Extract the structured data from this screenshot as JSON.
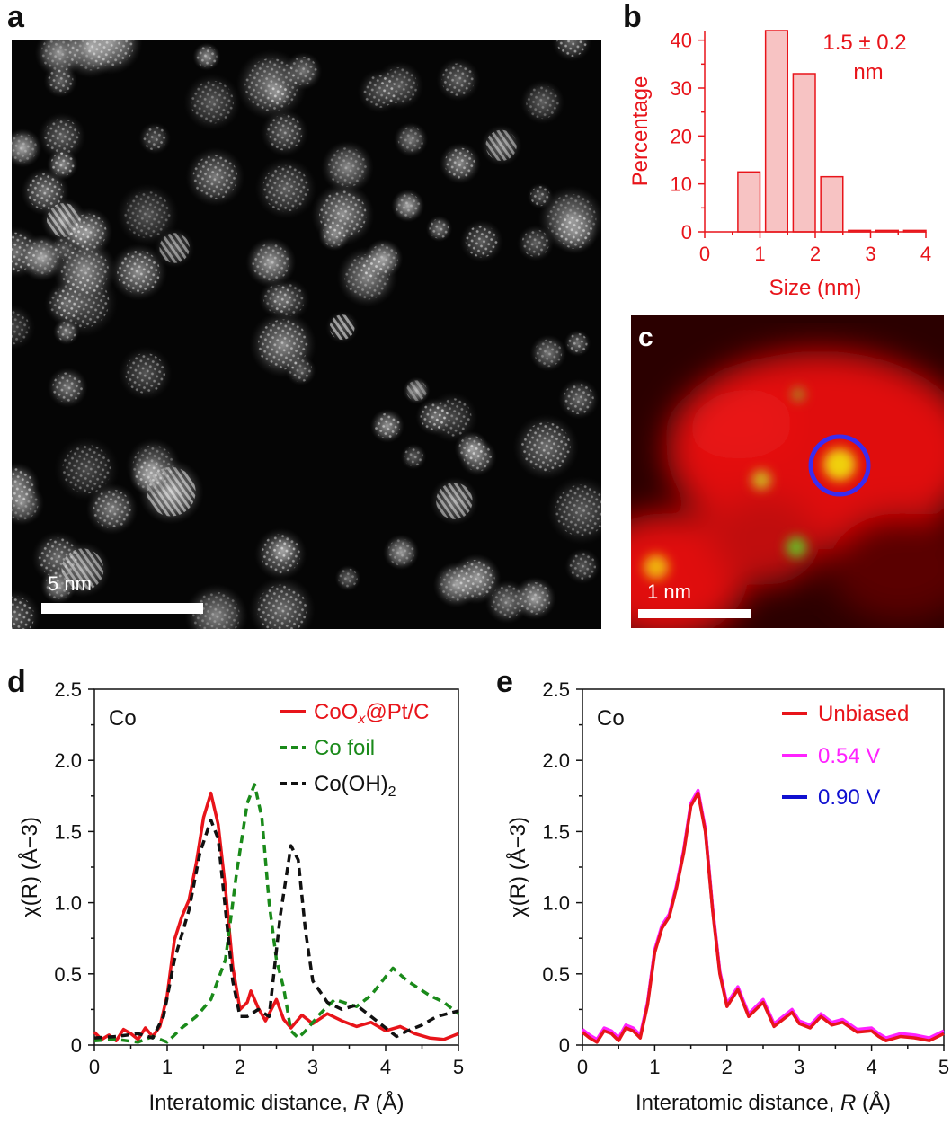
{
  "panels": {
    "a": {
      "letter": "a",
      "scale_label": "5 nm"
    },
    "b": {
      "letter": "b"
    },
    "c": {
      "letter": "c",
      "scale_label": "1 nm"
    },
    "d": {
      "letter": "d"
    },
    "e": {
      "letter": "e"
    }
  },
  "colors": {
    "red": "#e8141a",
    "green": "#1a8a1a",
    "black": "#111111",
    "magenta": "#ff22ff",
    "blue": "#1010d0",
    "hist_fill": "#f7c3c3"
  },
  "chart_data": [
    {
      "id": "b",
      "type": "bar",
      "xlabel": "Size (nm)",
      "ylabel": "Percentage",
      "annotation": [
        "1.5 ± 0.2",
        "nm"
      ],
      "xlim": [
        0,
        4
      ],
      "ylim": [
        0,
        42
      ],
      "xticks": [
        "0",
        "1",
        "2",
        "3",
        "4"
      ],
      "yticks": [
        "0",
        "10",
        "20",
        "30",
        "40"
      ],
      "bins": [
        {
          "x0": 0.6,
          "x1": 1.0,
          "value": 12.5
        },
        {
          "x0": 1.1,
          "x1": 1.5,
          "value": 42
        },
        {
          "x0": 1.6,
          "x1": 2.0,
          "value": 33
        },
        {
          "x0": 2.1,
          "x1": 2.5,
          "value": 11.5
        },
        {
          "x0": 2.6,
          "x1": 3.0,
          "value": 0.3
        },
        {
          "x0": 3.1,
          "x1": 3.5,
          "value": 0.3
        },
        {
          "x0": 3.6,
          "x1": 4.0,
          "value": 0.3
        }
      ]
    },
    {
      "id": "d",
      "type": "line",
      "label": "Co",
      "xlabel": "Interatomic distance, R (Å)",
      "ylabel": "χ(R) (Å−3)",
      "xlim": [
        0,
        5
      ],
      "ylim": [
        0,
        2.5
      ],
      "xticks": [
        "0",
        "1",
        "2",
        "3",
        "4",
        "5"
      ],
      "yticks": [
        "0",
        "0.5",
        "1.0",
        "1.5",
        "2.0",
        "2.5"
      ],
      "series": [
        {
          "name": "CoOx@Pt/C",
          "color": "#e8141a",
          "dashed": false,
          "points": [
            [
              0,
              0.09
            ],
            [
              0.1,
              0.04
            ],
            [
              0.2,
              0.07
            ],
            [
              0.3,
              0.03
            ],
            [
              0.4,
              0.11
            ],
            [
              0.5,
              0.08
            ],
            [
              0.6,
              0.04
            ],
            [
              0.7,
              0.12
            ],
            [
              0.8,
              0.06
            ],
            [
              0.9,
              0.13
            ],
            [
              1.0,
              0.35
            ],
            [
              1.1,
              0.74
            ],
            [
              1.2,
              0.9
            ],
            [
              1.3,
              1.02
            ],
            [
              1.4,
              1.28
            ],
            [
              1.5,
              1.6
            ],
            [
              1.6,
              1.77
            ],
            [
              1.7,
              1.55
            ],
            [
              1.8,
              1.1
            ],
            [
              1.9,
              0.55
            ],
            [
              2.0,
              0.25
            ],
            [
              2.1,
              0.3
            ],
            [
              2.15,
              0.38
            ],
            [
              2.25,
              0.26
            ],
            [
              2.35,
              0.17
            ],
            [
              2.5,
              0.32
            ],
            [
              2.6,
              0.18
            ],
            [
              2.7,
              0.12
            ],
            [
              2.85,
              0.21
            ],
            [
              3.0,
              0.15
            ],
            [
              3.2,
              0.22
            ],
            [
              3.4,
              0.17
            ],
            [
              3.6,
              0.13
            ],
            [
              3.8,
              0.16
            ],
            [
              4.0,
              0.1
            ],
            [
              4.2,
              0.13
            ],
            [
              4.4,
              0.08
            ],
            [
              4.6,
              0.05
            ],
            [
              4.8,
              0.04
            ],
            [
              5.0,
              0.08
            ]
          ]
        },
        {
          "name": "Co foil",
          "color": "#1a8a1a",
          "dashed": true,
          "points": [
            [
              0,
              0.03
            ],
            [
              0.3,
              0.04
            ],
            [
              0.6,
              0.02
            ],
            [
              0.8,
              0.06
            ],
            [
              1.0,
              0.02
            ],
            [
              1.2,
              0.12
            ],
            [
              1.4,
              0.2
            ],
            [
              1.6,
              0.32
            ],
            [
              1.8,
              0.6
            ],
            [
              1.95,
              1.2
            ],
            [
              2.1,
              1.7
            ],
            [
              2.2,
              1.83
            ],
            [
              2.3,
              1.6
            ],
            [
              2.4,
              1.0
            ],
            [
              2.5,
              0.6
            ],
            [
              2.6,
              0.4
            ],
            [
              2.7,
              0.1
            ],
            [
              2.8,
              0.05
            ],
            [
              2.9,
              0.1
            ],
            [
              3.1,
              0.22
            ],
            [
              3.3,
              0.32
            ],
            [
              3.6,
              0.27
            ],
            [
              3.8,
              0.35
            ],
            [
              4.0,
              0.48
            ],
            [
              4.1,
              0.54
            ],
            [
              4.3,
              0.45
            ],
            [
              4.6,
              0.35
            ],
            [
              4.8,
              0.3
            ],
            [
              5.0,
              0.22
            ]
          ]
        },
        {
          "name": "Co(OH)2",
          "color": "#111111",
          "dashed": true,
          "points": [
            [
              0,
              0.05
            ],
            [
              0.3,
              0.06
            ],
            [
              0.6,
              0.08
            ],
            [
              0.8,
              0.05
            ],
            [
              0.95,
              0.2
            ],
            [
              1.1,
              0.6
            ],
            [
              1.3,
              0.95
            ],
            [
              1.45,
              1.35
            ],
            [
              1.6,
              1.58
            ],
            [
              1.7,
              1.45
            ],
            [
              1.8,
              0.95
            ],
            [
              1.9,
              0.45
            ],
            [
              2.0,
              0.2
            ],
            [
              2.1,
              0.2
            ],
            [
              2.25,
              0.25
            ],
            [
              2.4,
              0.2
            ],
            [
              2.55,
              0.9
            ],
            [
              2.7,
              1.4
            ],
            [
              2.8,
              1.3
            ],
            [
              2.9,
              0.8
            ],
            [
              3.0,
              0.45
            ],
            [
              3.2,
              0.3
            ],
            [
              3.4,
              0.25
            ],
            [
              3.6,
              0.28
            ],
            [
              3.8,
              0.2
            ],
            [
              4.0,
              0.12
            ],
            [
              4.15,
              0.06
            ],
            [
              4.3,
              0.1
            ],
            [
              4.5,
              0.14
            ],
            [
              4.7,
              0.2
            ],
            [
              5.0,
              0.24
            ]
          ]
        }
      ]
    },
    {
      "id": "e",
      "type": "line",
      "label": "Co",
      "xlabel": "Interatomic distance, R (Å)",
      "ylabel": "χ(R) (Å−3)",
      "xlim": [
        0,
        5
      ],
      "ylim": [
        0,
        2.5
      ],
      "xticks": [
        "0",
        "1",
        "2",
        "3",
        "4",
        "5"
      ],
      "yticks": [
        "0",
        "0.5",
        "1.0",
        "1.5",
        "2.0",
        "2.5"
      ],
      "series": [
        {
          "name": "0.90 V",
          "color": "#1010d0",
          "dashed": false,
          "offset": 0.012
        },
        {
          "name": "0.54 V",
          "color": "#ff22ff",
          "dashed": false,
          "offset": 0.02
        },
        {
          "name": "Unbiased",
          "color": "#e8141a",
          "dashed": false,
          "offset": 0.0
        }
      ],
      "points": [
        [
          0,
          0.09
        ],
        [
          0.1,
          0.05
        ],
        [
          0.2,
          0.02
        ],
        [
          0.3,
          0.1
        ],
        [
          0.4,
          0.08
        ],
        [
          0.5,
          0.03
        ],
        [
          0.6,
          0.12
        ],
        [
          0.7,
          0.1
        ],
        [
          0.8,
          0.05
        ],
        [
          0.9,
          0.28
        ],
        [
          1.0,
          0.65
        ],
        [
          1.1,
          0.82
        ],
        [
          1.2,
          0.9
        ],
        [
          1.3,
          1.1
        ],
        [
          1.4,
          1.35
        ],
        [
          1.5,
          1.68
        ],
        [
          1.6,
          1.77
        ],
        [
          1.7,
          1.5
        ],
        [
          1.8,
          0.95
        ],
        [
          1.9,
          0.5
        ],
        [
          2.0,
          0.27
        ],
        [
          2.15,
          0.39
        ],
        [
          2.3,
          0.2
        ],
        [
          2.5,
          0.3
        ],
        [
          2.65,
          0.13
        ],
        [
          2.9,
          0.23
        ],
        [
          3.0,
          0.15
        ],
        [
          3.15,
          0.12
        ],
        [
          3.3,
          0.2
        ],
        [
          3.45,
          0.14
        ],
        [
          3.6,
          0.16
        ],
        [
          3.8,
          0.09
        ],
        [
          4.0,
          0.1
        ],
        [
          4.1,
          0.06
        ],
        [
          4.2,
          0.03
        ],
        [
          4.4,
          0.06
        ],
        [
          4.6,
          0.05
        ],
        [
          4.8,
          0.03
        ],
        [
          5.0,
          0.08
        ]
      ]
    }
  ]
}
